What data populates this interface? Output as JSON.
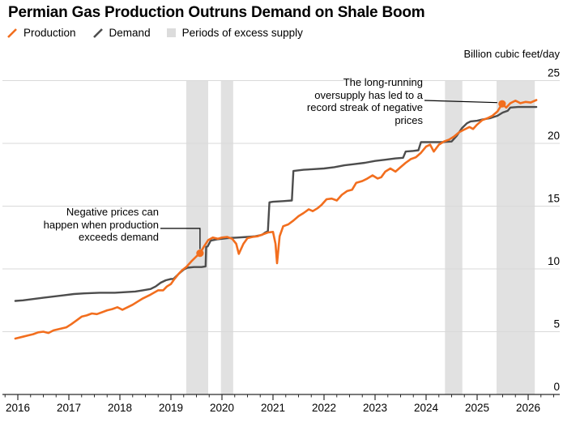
{
  "title": "Permian Gas Production Outruns Demand on Shale Boom",
  "legend": {
    "items": [
      {
        "label": "Production",
        "type": "line",
        "color": "#F26E1E"
      },
      {
        "label": "Demand",
        "type": "line",
        "color": "#4D4D4D"
      },
      {
        "label": "Periods of excess supply",
        "type": "band",
        "color": "#DCDCDC"
      }
    ]
  },
  "annotations": [
    {
      "text": "Negative prices can\nhappen when production\nexceeds demand",
      "marker_index": 0
    },
    {
      "text": "The long-running\noversupply has led to a\nrecord streak of negative\nprices",
      "marker_index": 1
    }
  ],
  "chart_data": {
    "type": "line",
    "title": "Permian Gas Production Outruns Demand on Shale Boom",
    "xlabel": "",
    "ylabel": "Billion cubic feet/day",
    "xlim": [
      2015.95,
      2026.6
    ],
    "ylim": [
      0,
      25
    ],
    "grid": true,
    "legend_position": "top",
    "x_ticks": [
      2016,
      2017,
      2018,
      2019,
      2020,
      2021,
      2022,
      2023,
      2024,
      2025,
      2026
    ],
    "y_ticks": [
      0,
      5,
      10,
      15,
      20,
      25
    ],
    "bands": [
      {
        "from": 2019.3,
        "to": 2019.73,
        "label": "excess supply 2019"
      },
      {
        "from": 2019.98,
        "to": 2020.22,
        "label": "excess supply early 2020"
      },
      {
        "from": 2024.37,
        "to": 2024.71,
        "label": "excess supply mid 2024"
      },
      {
        "from": 2025.38,
        "to": 2026.13,
        "label": "excess supply 2025-26"
      }
    ],
    "markers": [
      {
        "x": 2019.57,
        "y": 11.25,
        "series": "Production"
      },
      {
        "x": 2025.49,
        "y": 23.15,
        "series": "Production"
      }
    ],
    "series": [
      {
        "name": "Demand",
        "color": "#4D4D4D",
        "width": 2.4,
        "points": [
          [
            2015.95,
            7.45
          ],
          [
            2016.1,
            7.5
          ],
          [
            2016.3,
            7.6
          ],
          [
            2016.5,
            7.7
          ],
          [
            2016.7,
            7.8
          ],
          [
            2016.9,
            7.9
          ],
          [
            2017.1,
            8.0
          ],
          [
            2017.3,
            8.05
          ],
          [
            2017.6,
            8.1
          ],
          [
            2017.9,
            8.1
          ],
          [
            2018.1,
            8.15
          ],
          [
            2018.3,
            8.2
          ],
          [
            2018.45,
            8.3
          ],
          [
            2018.6,
            8.4
          ],
          [
            2018.7,
            8.6
          ],
          [
            2018.8,
            8.9
          ],
          [
            2018.9,
            9.1
          ],
          [
            2019.0,
            9.2
          ],
          [
            2019.05,
            9.2
          ],
          [
            2019.15,
            9.6
          ],
          [
            2019.25,
            9.95
          ],
          [
            2019.32,
            10.1
          ],
          [
            2019.45,
            10.15
          ],
          [
            2019.6,
            10.15
          ],
          [
            2019.68,
            10.2
          ],
          [
            2019.69,
            11.75
          ],
          [
            2019.72,
            11.8
          ],
          [
            2019.78,
            12.25
          ],
          [
            2019.9,
            12.35
          ],
          [
            2020.1,
            12.45
          ],
          [
            2020.3,
            12.5
          ],
          [
            2020.5,
            12.55
          ],
          [
            2020.65,
            12.6
          ],
          [
            2020.78,
            12.7
          ],
          [
            2020.85,
            12.9
          ],
          [
            2020.9,
            13.0
          ],
          [
            2020.93,
            15.3
          ],
          [
            2021.0,
            15.35
          ],
          [
            2021.2,
            15.4
          ],
          [
            2021.37,
            15.45
          ],
          [
            2021.4,
            17.8
          ],
          [
            2021.6,
            17.9
          ],
          [
            2021.8,
            17.95
          ],
          [
            2022.0,
            18.0
          ],
          [
            2022.2,
            18.1
          ],
          [
            2022.4,
            18.25
          ],
          [
            2022.6,
            18.35
          ],
          [
            2022.8,
            18.45
          ],
          [
            2023.0,
            18.6
          ],
          [
            2023.2,
            18.7
          ],
          [
            2023.4,
            18.8
          ],
          [
            2023.55,
            18.85
          ],
          [
            2023.6,
            19.35
          ],
          [
            2023.75,
            19.4
          ],
          [
            2023.85,
            19.45
          ],
          [
            2023.9,
            20.1
          ],
          [
            2024.1,
            20.1
          ],
          [
            2024.3,
            20.1
          ],
          [
            2024.5,
            20.15
          ],
          [
            2024.6,
            20.6
          ],
          [
            2024.7,
            21.2
          ],
          [
            2024.8,
            21.6
          ],
          [
            2024.87,
            21.75
          ],
          [
            2025.0,
            21.8
          ],
          [
            2025.1,
            21.9
          ],
          [
            2025.25,
            22.0
          ],
          [
            2025.4,
            22.2
          ],
          [
            2025.5,
            22.45
          ],
          [
            2025.6,
            22.6
          ],
          [
            2025.65,
            22.85
          ],
          [
            2025.8,
            22.9
          ],
          [
            2026.0,
            22.9
          ],
          [
            2026.16,
            22.9
          ]
        ]
      },
      {
        "name": "Production",
        "color": "#F26E1E",
        "width": 2.6,
        "points": [
          [
            2015.95,
            4.45
          ],
          [
            2016.1,
            4.6
          ],
          [
            2016.2,
            4.7
          ],
          [
            2016.3,
            4.8
          ],
          [
            2016.4,
            4.95
          ],
          [
            2016.5,
            5.0
          ],
          [
            2016.6,
            4.9
          ],
          [
            2016.7,
            5.1
          ],
          [
            2016.8,
            5.2
          ],
          [
            2016.95,
            5.35
          ],
          [
            2017.05,
            5.6
          ],
          [
            2017.15,
            5.9
          ],
          [
            2017.25,
            6.2
          ],
          [
            2017.35,
            6.3
          ],
          [
            2017.45,
            6.45
          ],
          [
            2017.55,
            6.4
          ],
          [
            2017.65,
            6.55
          ],
          [
            2017.75,
            6.7
          ],
          [
            2017.85,
            6.8
          ],
          [
            2017.95,
            6.95
          ],
          [
            2018.05,
            6.75
          ],
          [
            2018.15,
            6.95
          ],
          [
            2018.25,
            7.15
          ],
          [
            2018.35,
            7.4
          ],
          [
            2018.45,
            7.65
          ],
          [
            2018.6,
            7.95
          ],
          [
            2018.75,
            8.3
          ],
          [
            2018.85,
            8.3
          ],
          [
            2018.92,
            8.6
          ],
          [
            2019.0,
            8.8
          ],
          [
            2019.07,
            9.2
          ],
          [
            2019.15,
            9.6
          ],
          [
            2019.22,
            9.9
          ],
          [
            2019.3,
            10.15
          ],
          [
            2019.4,
            10.6
          ],
          [
            2019.5,
            11.0
          ],
          [
            2019.57,
            11.25
          ],
          [
            2019.65,
            11.8
          ],
          [
            2019.73,
            12.3
          ],
          [
            2019.82,
            12.5
          ],
          [
            2019.92,
            12.4
          ],
          [
            2020.0,
            12.5
          ],
          [
            2020.1,
            12.55
          ],
          [
            2020.2,
            12.4
          ],
          [
            2020.28,
            12.0
          ],
          [
            2020.33,
            11.2
          ],
          [
            2020.42,
            12.0
          ],
          [
            2020.5,
            12.45
          ],
          [
            2020.6,
            12.55
          ],
          [
            2020.7,
            12.6
          ],
          [
            2020.8,
            12.75
          ],
          [
            2020.9,
            12.9
          ],
          [
            2021.0,
            12.95
          ],
          [
            2021.05,
            12.0
          ],
          [
            2021.08,
            10.45
          ],
          [
            2021.13,
            12.6
          ],
          [
            2021.2,
            13.4
          ],
          [
            2021.3,
            13.55
          ],
          [
            2021.4,
            13.85
          ],
          [
            2021.5,
            14.2
          ],
          [
            2021.6,
            14.45
          ],
          [
            2021.7,
            14.75
          ],
          [
            2021.78,
            14.6
          ],
          [
            2021.88,
            14.85
          ],
          [
            2021.95,
            15.1
          ],
          [
            2022.05,
            15.55
          ],
          [
            2022.15,
            15.6
          ],
          [
            2022.25,
            15.45
          ],
          [
            2022.35,
            15.9
          ],
          [
            2022.45,
            16.2
          ],
          [
            2022.55,
            16.3
          ],
          [
            2022.63,
            16.85
          ],
          [
            2022.75,
            17.0
          ],
          [
            2022.85,
            17.2
          ],
          [
            2022.95,
            17.45
          ],
          [
            2023.05,
            17.2
          ],
          [
            2023.12,
            17.3
          ],
          [
            2023.2,
            17.75
          ],
          [
            2023.3,
            18.0
          ],
          [
            2023.4,
            17.75
          ],
          [
            2023.5,
            18.1
          ],
          [
            2023.6,
            18.45
          ],
          [
            2023.7,
            18.75
          ],
          [
            2023.8,
            18.9
          ],
          [
            2023.9,
            19.25
          ],
          [
            2024.0,
            19.75
          ],
          [
            2024.08,
            19.9
          ],
          [
            2024.15,
            19.35
          ],
          [
            2024.25,
            19.9
          ],
          [
            2024.35,
            20.15
          ],
          [
            2024.45,
            20.3
          ],
          [
            2024.55,
            20.55
          ],
          [
            2024.65,
            20.9
          ],
          [
            2024.75,
            21.1
          ],
          [
            2024.85,
            21.3
          ],
          [
            2024.92,
            21.15
          ],
          [
            2025.0,
            21.5
          ],
          [
            2025.1,
            21.85
          ],
          [
            2025.2,
            22.0
          ],
          [
            2025.3,
            22.2
          ],
          [
            2025.4,
            22.55
          ],
          [
            2025.49,
            23.15
          ],
          [
            2025.57,
            22.85
          ],
          [
            2025.65,
            23.2
          ],
          [
            2025.75,
            23.4
          ],
          [
            2025.85,
            23.2
          ],
          [
            2025.95,
            23.3
          ],
          [
            2026.05,
            23.25
          ],
          [
            2026.16,
            23.45
          ]
        ]
      }
    ]
  },
  "colors": {
    "band": "#E1E1E1",
    "gridline": "#D9D9D9",
    "axis": "#2B2B2B",
    "callout": "#000000"
  }
}
